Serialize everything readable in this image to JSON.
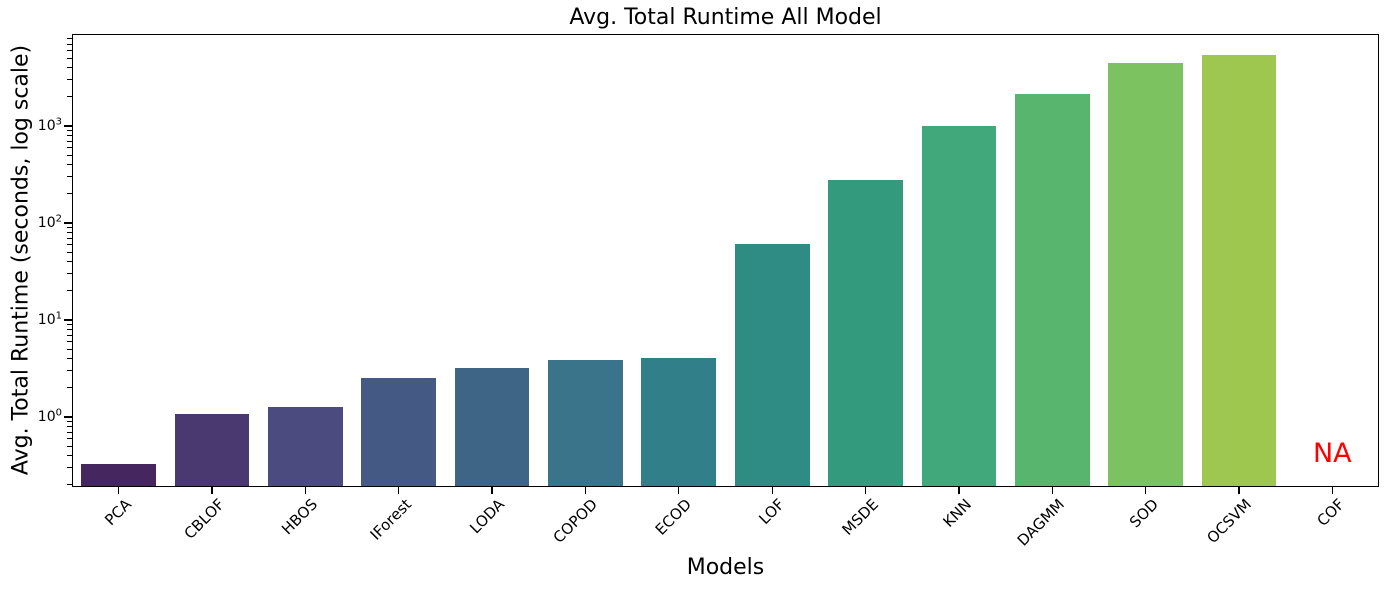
{
  "chart_data": {
    "type": "bar",
    "title": "Avg. Total Runtime All Model",
    "xlabel": "Models",
    "ylabel": "Avg. Total Runtime (seconds, log scale)",
    "yscale": "log",
    "ylim": [
      0.19,
      8900
    ],
    "ytick_exponents": [
      0,
      1,
      2,
      3
    ],
    "grid": false,
    "legend": "none",
    "categories": [
      "PCA",
      "CBLOF",
      "HBOS",
      "IForest",
      "LODA",
      "COPOD",
      "ECOD",
      "LOF",
      "MSDE",
      "KNN",
      "DAGMM",
      "SOD",
      "OCSVM",
      "COF"
    ],
    "values": [
      0.33,
      1.07,
      1.28,
      2.5,
      3.2,
      3.9,
      4.05,
      61,
      280,
      1000,
      2130,
      4450,
      5400,
      null
    ],
    "bar_colors": [
      "#45265f",
      "#4a3970",
      "#4b4b80",
      "#445a84",
      "#3e6486",
      "#39748a",
      "#318089",
      "#2e8c84",
      "#339a7e",
      "#40a87a",
      "#58b56d",
      "#7cc261",
      "#9dc74e",
      null
    ],
    "missing_value_label": "NA",
    "missing_value_color": "#ff0000",
    "axis_color": "#000000"
  }
}
